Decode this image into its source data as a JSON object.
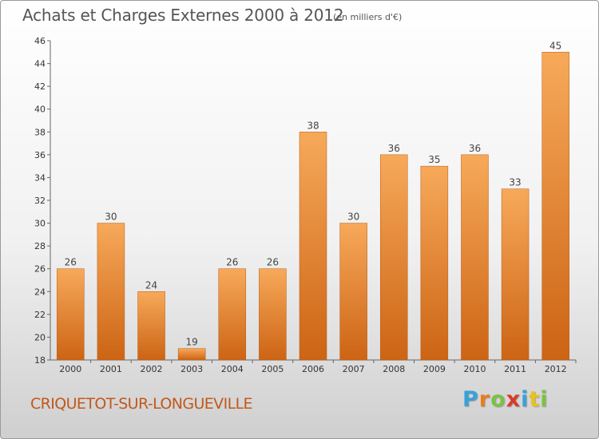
{
  "header": {
    "title": "Achats et Charges Externes 2000 à 2012",
    "unit": "(en milliers d'€)"
  },
  "footer": {
    "commune": "CRIQUETOT-SUR-LONGUEVILLE",
    "brand_letters": [
      "P",
      "r",
      "o",
      "x",
      "i",
      "t",
      "i"
    ],
    "brand_colors": [
      "#3aa0d8",
      "#e87d1e",
      "#7cc244",
      "#d93a2b",
      "#3aa0d8",
      "#e8c21e",
      "#7cc244"
    ]
  },
  "colors": {
    "bar_light": "#f7a95a",
    "bar_dark": "#cc6414",
    "bar_border": "#b85a14",
    "axis": "#666666",
    "grid": "#dddddd"
  },
  "chart_data": {
    "type": "bar",
    "title": "Achats et Charges Externes 2000 à 2012",
    "subtitle": "(en milliers d'€)",
    "categories": [
      "2000",
      "2001",
      "2002",
      "2003",
      "2004",
      "2005",
      "2006",
      "2007",
      "2008",
      "2009",
      "2010",
      "2011",
      "2012"
    ],
    "values": [
      26,
      30,
      24,
      19,
      26,
      26,
      38,
      30,
      36,
      35,
      36,
      33,
      45
    ],
    "ylim": [
      18,
      46
    ],
    "yticks": [
      18,
      20,
      22,
      24,
      26,
      28,
      30,
      32,
      34,
      36,
      38,
      40,
      42,
      44,
      46
    ],
    "grid": false,
    "legend": "none"
  }
}
